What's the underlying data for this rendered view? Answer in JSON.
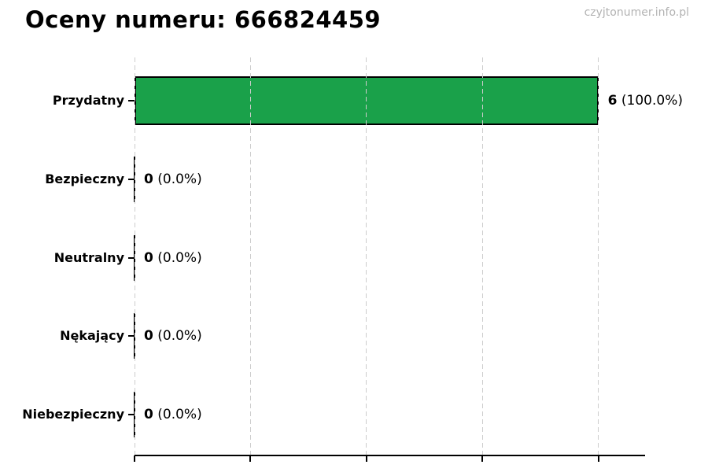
{
  "header": {
    "title": "Oceny numeru: 666824459",
    "watermark": "czyjtonumer.info.pl"
  },
  "chart_data": {
    "type": "bar",
    "orientation": "horizontal",
    "title": "Oceny numeru: 666824459",
    "categories": [
      "Przydatny",
      "Bezpieczny",
      "Neutralny",
      "Nękający",
      "Niebezpieczny"
    ],
    "values": [
      6,
      0,
      0,
      0,
      0
    ],
    "value_labels": [
      {
        "count": "6",
        "percent": "(100.0%)"
      },
      {
        "count": "0",
        "percent": "(0.0%)"
      },
      {
        "count": "0",
        "percent": "(0.0%)"
      },
      {
        "count": "0",
        "percent": "(0.0%)"
      },
      {
        "count": "0",
        "percent": "(0.0%)"
      }
    ],
    "xlim": [
      0,
      6.6
    ],
    "xticks": [
      0,
      1.5,
      3.0,
      4.5,
      6.0
    ],
    "x_tick_labels_visible": false,
    "grid": {
      "axis": "x",
      "style": "dashed",
      "color": "#cccccc"
    },
    "legend": "none",
    "colors": {
      "bar_fill": "#1aa14a",
      "bar_edge": "#000000",
      "axis": "#000000",
      "title_text": "#000000",
      "watermark_text": "#b3b3b3"
    }
  }
}
